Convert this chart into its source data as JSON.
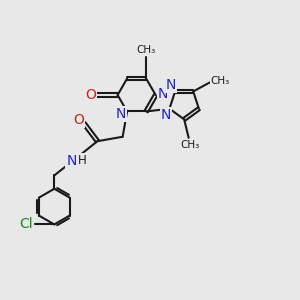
{
  "bg_color": "#e8e8e8",
  "bond_color": "#1a1a1a",
  "N_color": "#2323cc",
  "O_color": "#cc2020",
  "Cl_color": "#1a8a1a",
  "bond_width": 1.5,
  "font_size": 10,
  "fig_size": [
    3.0,
    3.0
  ],
  "dpi": 100,
  "xlim": [
    0,
    10
  ],
  "ylim": [
    0,
    10
  ]
}
